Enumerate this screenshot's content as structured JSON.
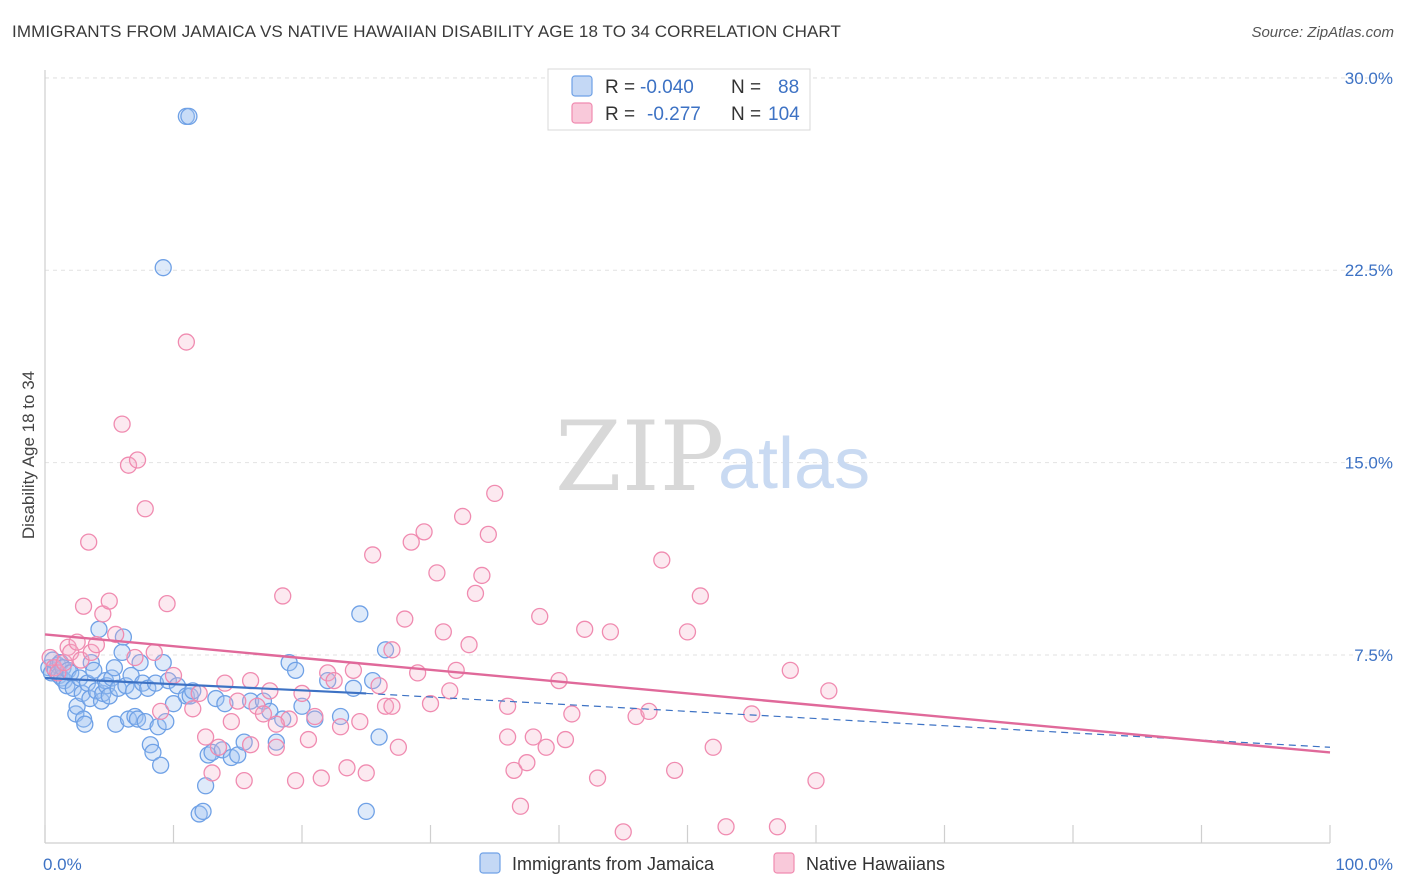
{
  "title": "IMMIGRANTS FROM JAMAICA VS NATIVE HAWAIIAN DISABILITY AGE 18 TO 34 CORRELATION CHART",
  "source": "Source: ZipAtlas.com",
  "watermark": {
    "zip": "ZIP",
    "atlas": "atlas"
  },
  "legend_top": [
    {
      "r_label": "R =",
      "r_value": "-0.040",
      "n_label": "N =",
      "n_value": "88",
      "color": "#6fa1e6"
    },
    {
      "r_label": "R =",
      "r_value": "-0.277",
      "n_label": "N =",
      "n_value": "104",
      "color": "#f08bb0"
    }
  ],
  "legend_bottom": [
    {
      "label": "Immigrants from Jamaica",
      "color": "#6fa1e6"
    },
    {
      "label": "Native Hawaiians",
      "color": "#f08bb0"
    }
  ],
  "chart_data": {
    "type": "scatter",
    "ylabel": "Disability Age 18 to 34",
    "xlabel": "",
    "x_tick_labels": [
      "0.0%",
      "100.0%"
    ],
    "y_tick_labels": [
      "7.5%",
      "15.0%",
      "22.5%",
      "30.0%"
    ],
    "y_ticks": [
      7.5,
      15.0,
      22.5,
      30.0
    ],
    "xlim": [
      0,
      100
    ],
    "ylim": [
      0,
      31
    ],
    "grid": true,
    "series": [
      {
        "name": "Immigrants from Jamaica",
        "color": "#6fa1e6",
        "trend": {
          "x0": 0,
          "y0": 6.6,
          "x1": 25,
          "y1": 6.0,
          "dash_to_x": 100,
          "dash_to_y": 3.9
        },
        "points": [
          [
            0.3,
            7.0
          ],
          [
            0.5,
            6.8
          ],
          [
            0.6,
            7.3
          ],
          [
            0.8,
            6.9
          ],
          [
            1.0,
            7.1
          ],
          [
            1.1,
            6.7
          ],
          [
            1.2,
            7.2
          ],
          [
            1.3,
            6.6
          ],
          [
            1.4,
            7.0
          ],
          [
            1.5,
            6.5
          ],
          [
            1.7,
            6.3
          ],
          [
            1.8,
            6.9
          ],
          [
            2.0,
            6.8
          ],
          [
            2.2,
            6.2
          ],
          [
            2.4,
            5.2
          ],
          [
            2.5,
            5.5
          ],
          [
            2.7,
            6.6
          ],
          [
            2.9,
            6.0
          ],
          [
            3.0,
            5.0
          ],
          [
            3.1,
            4.8
          ],
          [
            3.3,
            6.4
          ],
          [
            3.5,
            5.8
          ],
          [
            3.6,
            7.2
          ],
          [
            3.8,
            6.9
          ],
          [
            4.0,
            6.1
          ],
          [
            4.2,
            8.5
          ],
          [
            4.4,
            5.7
          ],
          [
            4.5,
            6.0
          ],
          [
            4.7,
            6.5
          ],
          [
            4.8,
            6.3
          ],
          [
            5.0,
            5.9
          ],
          [
            5.2,
            6.6
          ],
          [
            5.4,
            7.0
          ],
          [
            5.5,
            4.8
          ],
          [
            5.7,
            6.2
          ],
          [
            6.0,
            7.6
          ],
          [
            6.1,
            8.2
          ],
          [
            6.3,
            6.3
          ],
          [
            6.5,
            5.0
          ],
          [
            6.7,
            6.7
          ],
          [
            6.9,
            6.1
          ],
          [
            7.0,
            5.1
          ],
          [
            7.2,
            5.0
          ],
          [
            7.4,
            7.2
          ],
          [
            7.6,
            6.4
          ],
          [
            7.8,
            4.9
          ],
          [
            8.0,
            6.2
          ],
          [
            8.2,
            4.0
          ],
          [
            8.4,
            3.7
          ],
          [
            8.6,
            6.4
          ],
          [
            8.8,
            4.7
          ],
          [
            9.0,
            3.2
          ],
          [
            9.2,
            7.2
          ],
          [
            9.4,
            4.9
          ],
          [
            9.6,
            6.5
          ],
          [
            10.0,
            5.6
          ],
          [
            10.3,
            6.3
          ],
          [
            11.0,
            5.9
          ],
          [
            11.3,
            5.9
          ],
          [
            11.5,
            6.1
          ],
          [
            12.0,
            1.3
          ],
          [
            12.3,
            1.4
          ],
          [
            12.5,
            2.4
          ],
          [
            12.7,
            3.6
          ],
          [
            13.0,
            3.7
          ],
          [
            13.3,
            5.8
          ],
          [
            13.8,
            3.8
          ],
          [
            14.0,
            5.6
          ],
          [
            14.5,
            3.5
          ],
          [
            15.0,
            3.6
          ],
          [
            15.5,
            4.1
          ],
          [
            16.0,
            5.7
          ],
          [
            17.0,
            5.7
          ],
          [
            17.5,
            5.3
          ],
          [
            18.0,
            4.1
          ],
          [
            18.5,
            5.0
          ],
          [
            19.0,
            7.2
          ],
          [
            19.5,
            6.9
          ],
          [
            20.0,
            5.5
          ],
          [
            21.0,
            5.0
          ],
          [
            22.0,
            6.5
          ],
          [
            23.0,
            5.1
          ],
          [
            24.0,
            6.2
          ],
          [
            24.5,
            9.1
          ],
          [
            25.0,
            1.4
          ],
          [
            25.5,
            6.5
          ],
          [
            26.0,
            4.3
          ],
          [
            26.5,
            7.7
          ]
        ],
        "outliers": [
          [
            11.0,
            28.5
          ],
          [
            11.2,
            28.5
          ],
          [
            9.2,
            22.6
          ]
        ]
      },
      {
        "name": "Native Hawaiians",
        "color": "#f08bb0",
        "trend": {
          "x0": 0,
          "y0": 8.3,
          "x1": 100,
          "y1": 3.7
        },
        "points": [
          [
            0.4,
            7.4
          ],
          [
            0.7,
            7.0
          ],
          [
            1.0,
            6.8
          ],
          [
            1.5,
            7.2
          ],
          [
            1.8,
            7.8
          ],
          [
            2.0,
            7.6
          ],
          [
            2.5,
            8.0
          ],
          [
            2.8,
            7.3
          ],
          [
            3.0,
            9.4
          ],
          [
            3.4,
            11.9
          ],
          [
            3.6,
            7.6
          ],
          [
            4.0,
            7.9
          ],
          [
            4.5,
            9.1
          ],
          [
            5.0,
            9.6
          ],
          [
            5.5,
            8.3
          ],
          [
            6.0,
            16.5
          ],
          [
            6.5,
            14.9
          ],
          [
            7.0,
            7.4
          ],
          [
            7.2,
            15.1
          ],
          [
            7.8,
            13.2
          ],
          [
            8.5,
            7.6
          ],
          [
            9.0,
            5.3
          ],
          [
            9.5,
            9.5
          ],
          [
            10.0,
            6.7
          ],
          [
            11.0,
            19.7
          ],
          [
            11.5,
            5.4
          ],
          [
            12.0,
            6.0
          ],
          [
            12.5,
            4.3
          ],
          [
            13.0,
            2.9
          ],
          [
            13.5,
            3.9
          ],
          [
            14.0,
            6.4
          ],
          [
            14.5,
            4.9
          ],
          [
            15.0,
            5.7
          ],
          [
            15.5,
            2.6
          ],
          [
            16.0,
            6.5
          ],
          [
            16.5,
            5.5
          ],
          [
            17.0,
            5.2
          ],
          [
            17.5,
            6.1
          ],
          [
            18.0,
            3.9
          ],
          [
            18.5,
            9.8
          ],
          [
            19.0,
            5.0
          ],
          [
            19.5,
            2.6
          ],
          [
            20.0,
            6.0
          ],
          [
            20.5,
            4.2
          ],
          [
            21.0,
            5.1
          ],
          [
            21.5,
            2.7
          ],
          [
            22.0,
            6.8
          ],
          [
            22.5,
            6.5
          ],
          [
            23.0,
            4.7
          ],
          [
            23.5,
            3.1
          ],
          [
            24.0,
            6.9
          ],
          [
            24.5,
            4.9
          ],
          [
            25.0,
            2.9
          ],
          [
            25.5,
            11.4
          ],
          [
            26.0,
            6.3
          ],
          [
            26.5,
            5.5
          ],
          [
            27.0,
            7.7
          ],
          [
            27.5,
            3.9
          ],
          [
            28.0,
            8.9
          ],
          [
            28.5,
            11.9
          ],
          [
            29.0,
            6.8
          ],
          [
            29.5,
            12.3
          ],
          [
            30.0,
            5.6
          ],
          [
            30.5,
            10.7
          ],
          [
            31.0,
            8.4
          ],
          [
            31.5,
            6.1
          ],
          [
            32.0,
            6.9
          ],
          [
            32.5,
            12.9
          ],
          [
            33.0,
            7.9
          ],
          [
            33.5,
            9.9
          ],
          [
            34.0,
            10.6
          ],
          [
            34.5,
            12.2
          ],
          [
            35.0,
            13.8
          ],
          [
            36.0,
            5.5
          ],
          [
            36.5,
            3.0
          ],
          [
            37.0,
            1.6
          ],
          [
            37.5,
            3.3
          ],
          [
            38.0,
            4.3
          ],
          [
            38.5,
            9.0
          ],
          [
            39.0,
            3.9
          ],
          [
            40.0,
            6.5
          ],
          [
            41.0,
            5.2
          ],
          [
            42.0,
            8.5
          ],
          [
            43.0,
            2.7
          ],
          [
            44.0,
            8.4
          ],
          [
            45.0,
            0.6
          ],
          [
            46.0,
            5.1
          ],
          [
            47.0,
            5.3
          ],
          [
            48.0,
            11.2
          ],
          [
            49.0,
            3.0
          ],
          [
            50.0,
            8.4
          ],
          [
            51.0,
            9.8
          ],
          [
            52.0,
            3.9
          ],
          [
            53.0,
            0.8
          ],
          [
            55.0,
            5.2
          ],
          [
            57.0,
            0.8
          ],
          [
            58.0,
            6.9
          ],
          [
            60.0,
            2.6
          ],
          [
            61.0,
            6.1
          ],
          [
            18.0,
            4.8
          ],
          [
            16.0,
            4.0
          ],
          [
            27.0,
            5.5
          ],
          [
            36.0,
            4.3
          ],
          [
            40.5,
            4.2
          ]
        ]
      }
    ]
  }
}
